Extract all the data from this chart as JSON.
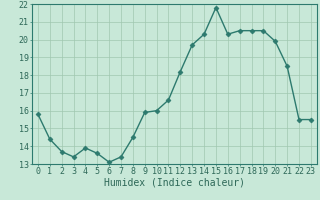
{
  "x": [
    0,
    1,
    2,
    3,
    4,
    5,
    6,
    7,
    8,
    9,
    10,
    11,
    12,
    13,
    14,
    15,
    16,
    17,
    18,
    19,
    20,
    21,
    22,
    23
  ],
  "y": [
    15.8,
    14.4,
    13.7,
    13.4,
    13.9,
    13.6,
    13.1,
    13.4,
    14.5,
    15.9,
    16.0,
    16.6,
    18.2,
    19.7,
    20.3,
    21.8,
    20.3,
    20.5,
    20.5,
    20.5,
    19.9,
    18.5,
    15.5,
    15.5
  ],
  "ylim": [
    13,
    22
  ],
  "xlim_min": -0.5,
  "xlim_max": 23.5,
  "yticks": [
    13,
    14,
    15,
    16,
    17,
    18,
    19,
    20,
    21,
    22
  ],
  "xticks": [
    0,
    1,
    2,
    3,
    4,
    5,
    6,
    7,
    8,
    9,
    10,
    11,
    12,
    13,
    14,
    15,
    16,
    17,
    18,
    19,
    20,
    21,
    22,
    23
  ],
  "line_color": "#2d7a6e",
  "marker": "D",
  "marker_size": 2.5,
  "bg_color": "#c8e8d8",
  "grid_color": "#a0c8b0",
  "xlabel": "Humidex (Indice chaleur)",
  "tick_label_color": "#2d6858",
  "xlabel_color": "#2d6858",
  "font_size_axis": 7,
  "font_size_tick": 6
}
